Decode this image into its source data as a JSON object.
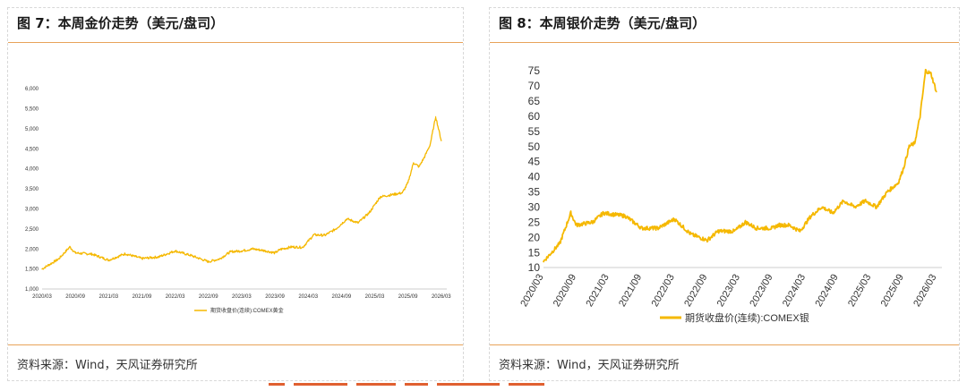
{
  "panels": [
    {
      "title": "图 7：本周金价走势（美元/盘司）",
      "source": "资料来源：Wind，天风证券研究所"
    },
    {
      "title": "图 8：本周银价走势（美元/盘司）",
      "source": "资料来源：Wind，天风证券研究所"
    }
  ],
  "colors": {
    "line": "#f5b800",
    "rule": "#e8a35a"
  },
  "chart_data": [
    {
      "type": "line",
      "ylim": [
        1000,
        6000
      ],
      "yticks": [
        "1,000",
        "1,500",
        "2,000",
        "2,500",
        "3,000",
        "3,500",
        "4,000",
        "4,500",
        "5,000",
        "5,500",
        "6,000"
      ],
      "xticks": [
        "2020/03",
        "2020/09",
        "2021/03",
        "2021/09",
        "2022/03",
        "2022/09",
        "2023/03",
        "2023/09",
        "2024/03",
        "2024/09",
        "2025/03",
        "2025/09",
        "2026/03"
      ],
      "legend": "期货收盘价(连续):COMEX黄金",
      "series": [
        {
          "name": "期货收盘价(连续):COMEX黄金",
          "x": [
            "2020/03",
            "2020/06",
            "2020/08",
            "2020/09",
            "2020/12",
            "2021/03",
            "2021/06",
            "2021/09",
            "2021/12",
            "2022/03",
            "2022/06",
            "2022/09",
            "2022/11",
            "2023/01",
            "2023/03",
            "2023/05",
            "2023/07",
            "2023/09",
            "2023/10",
            "2023/12",
            "2024/02",
            "2024/04",
            "2024/06",
            "2024/08",
            "2024/10",
            "2024/12",
            "2025/02",
            "2025/04",
            "2025/06",
            "2025/08",
            "2025/09",
            "2025/10",
            "2025/11",
            "2025/12",
            "2026/01",
            "2026/02",
            "2026/03"
          ],
          "values": [
            1500,
            1750,
            2050,
            1900,
            1870,
            1720,
            1880,
            1760,
            1800,
            1950,
            1830,
            1680,
            1750,
            1930,
            1950,
            2000,
            1960,
            1900,
            1990,
            2050,
            2040,
            2350,
            2340,
            2500,
            2750,
            2650,
            2900,
            3300,
            3350,
            3400,
            3650,
            4150,
            4050,
            4300,
            4600,
            5300,
            4700
          ]
        }
      ]
    },
    {
      "type": "line",
      "ylim": [
        10,
        75
      ],
      "yticks": [
        "10",
        "15",
        "20",
        "25",
        "30",
        "35",
        "40",
        "45",
        "50",
        "55",
        "60",
        "65",
        "70",
        "75"
      ],
      "xticks": [
        "2020/03",
        "2020/09",
        "2021/03",
        "2021/09",
        "2022/03",
        "2022/09",
        "2023/03",
        "2023/09",
        "2024/03",
        "2024/09",
        "2025/03",
        "2025/09",
        "2026/03"
      ],
      "legend": "期货收盘价(连续):COMEX银",
      "series": [
        {
          "name": "期货收盘价(连续):COMEX银",
          "x": [
            "2020/03",
            "2020/06",
            "2020/08",
            "2020/09",
            "2020/12",
            "2021/02",
            "2021/06",
            "2021/09",
            "2021/12",
            "2022/03",
            "2022/06",
            "2022/09",
            "2022/11",
            "2023/02",
            "2023/04",
            "2023/06",
            "2023/09",
            "2023/10",
            "2023/12",
            "2024/02",
            "2024/04",
            "2024/06",
            "2024/08",
            "2024/10",
            "2024/12",
            "2025/02",
            "2025/04",
            "2025/06",
            "2025/08",
            "2025/09",
            "2025/10",
            "2025/11",
            "2025/12",
            "2026/01",
            "2026/02",
            "2026/03"
          ],
          "values": [
            12,
            18,
            28,
            24,
            25,
            28,
            27,
            23,
            23,
            26,
            21,
            19,
            22,
            22,
            25,
            23,
            23,
            24,
            24,
            22,
            27,
            30,
            28,
            32,
            30,
            32,
            30,
            35,
            38,
            43,
            50,
            51,
            60,
            75,
            74,
            68
          ]
        }
      ]
    }
  ]
}
